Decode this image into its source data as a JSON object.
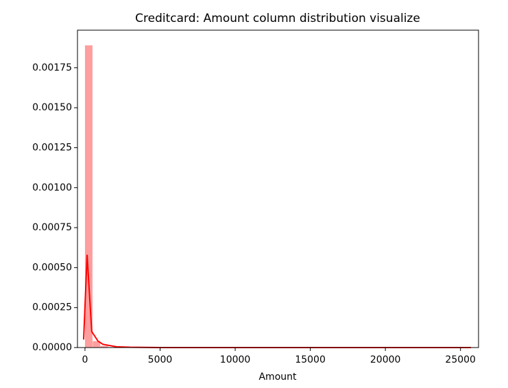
{
  "chart_data": {
    "type": "histogram",
    "title": "Creditcard: Amount column distribution visualize",
    "xlabel": "Amount",
    "bins": [
      0,
      513.82,
      1027.65,
      1541.47,
      2055.29,
      2569.12,
      3082.94,
      3596.76,
      4110.59,
      4624.41,
      5138.23,
      5652.06,
      6165.88,
      6679.7,
      7193.52,
      7707.35,
      8221.17,
      8734.99,
      9248.82,
      9762.64,
      10276.46,
      10790.29,
      11304.11,
      11817.93,
      12331.76,
      12845.58,
      13359.4,
      13873.23,
      14387.05,
      14900.87,
      15414.7,
      15928.52,
      16442.34,
      16956.17,
      17469.99,
      17983.81,
      18497.64,
      19011.46,
      19525.28,
      20039.11,
      20552.93,
      21066.75,
      21580.58,
      22094.4,
      22608.22,
      23122.05,
      23635.87,
      24149.69,
      24663.52,
      25177.34,
      25691.16
    ],
    "values": [
      0.00189,
      4e-05,
      1e-05,
      0,
      0,
      0,
      0,
      0,
      0,
      0,
      0,
      0,
      0,
      0,
      0,
      0,
      0,
      0,
      0,
      0,
      0,
      0,
      0,
      0,
      0,
      0,
      0,
      0,
      0,
      0,
      0,
      0,
      0,
      0,
      0,
      0,
      0,
      0,
      0,
      0,
      0,
      0,
      0,
      0,
      0,
      0,
      0,
      0,
      0,
      0
    ],
    "color": "#ff9e9e",
    "kde": {
      "x": [
        -90,
        140,
        450,
        870,
        1200,
        2100,
        3000,
        5000,
        10000,
        15000,
        20000,
        25700
      ],
      "values": [
        5e-05,
        0.00058,
        0.0001,
        4e-05,
        2e-05,
        5e-06,
        2e-06,
        0,
        0,
        0,
        0,
        0
      ],
      "color": "#ff0000"
    },
    "xlim": [
      -500,
      26200
    ],
    "ylim": [
      0,
      0.001985
    ],
    "xticks": [
      0,
      5000,
      10000,
      15000,
      20000,
      25000
    ],
    "yticks": [
      {
        "value": 0,
        "label": "0.00000"
      },
      {
        "value": 0.00025,
        "label": "0.00025"
      },
      {
        "value": 0.0005,
        "label": "0.00050"
      },
      {
        "value": 0.00075,
        "label": "0.00075"
      },
      {
        "value": 0.001,
        "label": "0.00100"
      },
      {
        "value": 0.00125,
        "label": "0.00125"
      },
      {
        "value": 0.0015,
        "label": "0.00150"
      },
      {
        "value": 0.00175,
        "label": "0.00175"
      }
    ]
  }
}
